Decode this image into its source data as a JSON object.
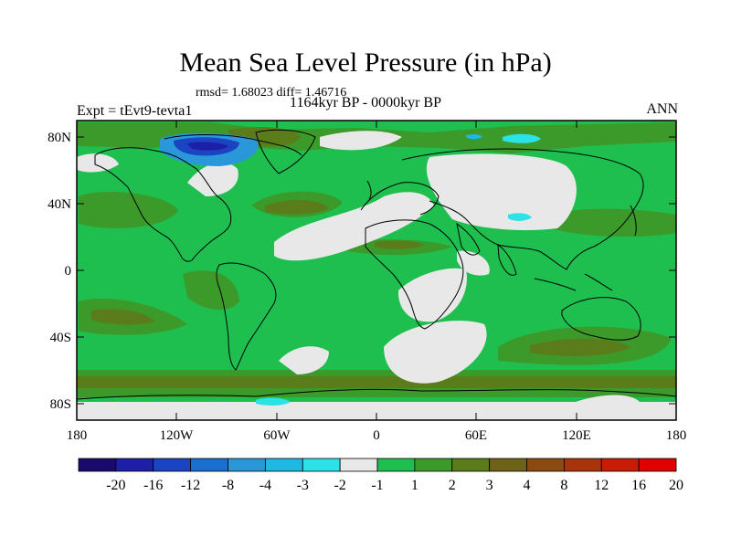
{
  "title": "Mean Sea Level Pressure (in hPa)",
  "stats": "rmsd= 1.68023 diff= 1.46716",
  "subtitle": "1164kyr BP - 0000kyr BP",
  "left_label": "Expt = tEvt9-tevta1",
  "right_label": "ANN",
  "lat_labels": [
    "80N",
    "40N",
    "0",
    "40S",
    "80S"
  ],
  "lon_labels": [
    "180",
    "120W",
    "60W",
    "0",
    "60E",
    "120E",
    "180"
  ],
  "colorbar": {
    "colors": [
      "#1a0a6e",
      "#1e1fa8",
      "#1a44c2",
      "#1b6fd0",
      "#2a97d8",
      "#1fb8e2",
      "#2de2e6",
      "#e8e8e8",
      "#1fbf4f",
      "#3c9a2a",
      "#5a7c1a",
      "#6e6118",
      "#8a4a12",
      "#a8340c",
      "#c81c06",
      "#e00000"
    ],
    "labels": [
      "-20",
      "-16",
      "-12",
      "-8",
      "-4",
      "-3",
      "-2",
      "-1",
      "1",
      "2",
      "3",
      "4",
      "8",
      "12",
      "16",
      "20"
    ]
  }
}
